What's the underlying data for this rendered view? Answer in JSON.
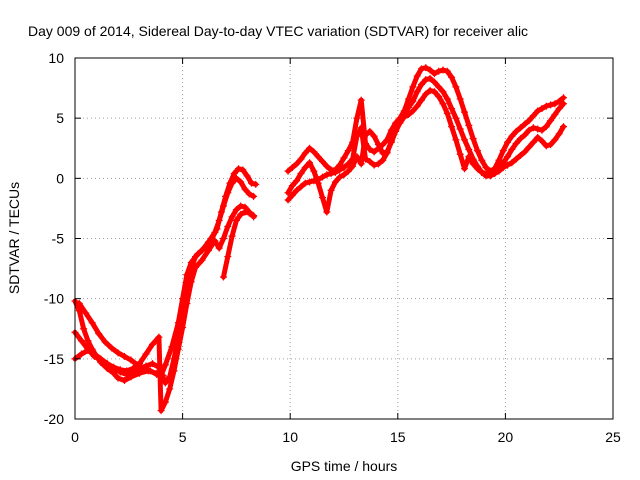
{
  "chart_data": {
    "type": "scatter",
    "title": "Day 009 of 2014, Sidereal Day-to-day VTEC variation (SDTVAR) for receiver alic",
    "xlabel": "GPS time / hours",
    "ylabel": "SDTVAR / TECUs",
    "xlim": [
      0,
      25
    ],
    "ylim": [
      -20,
      10
    ],
    "xticks": [
      "0",
      "5",
      "10",
      "15",
      "20",
      "25"
    ],
    "yticks": [
      "-20",
      "-15",
      "-10",
      "-5",
      "0",
      "5",
      "10"
    ],
    "grid": true,
    "marker": "+",
    "color": "#ff0000",
    "series": [
      {
        "values": [
          [
            0.0,
            -10.2
          ],
          [
            0.2,
            -11.0
          ],
          [
            0.4,
            -12.5
          ],
          [
            0.6,
            -13.5
          ],
          [
            0.8,
            -14.2
          ],
          [
            1.0,
            -14.8
          ],
          [
            1.2,
            -15.3
          ],
          [
            1.5,
            -15.8
          ],
          [
            1.8,
            -16.2
          ],
          [
            2.0,
            -16.6
          ],
          [
            2.3,
            -16.8
          ],
          [
            2.6,
            -16.5
          ],
          [
            3.0,
            -16.2
          ],
          [
            3.4,
            -16.0
          ],
          [
            3.8,
            -16.2
          ],
          [
            4.0,
            -16.4
          ],
          [
            4.2,
            -15.5
          ],
          [
            4.5,
            -14.0
          ],
          [
            4.8,
            -12.0
          ],
          [
            5.0,
            -10.0
          ],
          [
            5.2,
            -8.0
          ],
          [
            5.4,
            -7.0
          ],
          [
            5.7,
            -6.3
          ],
          [
            6.0,
            -5.8
          ],
          [
            6.3,
            -5.2
          ],
          [
            6.6,
            -4.2
          ],
          [
            6.8,
            -2.8
          ],
          [
            7.0,
            -1.5
          ],
          [
            7.2,
            -0.4
          ],
          [
            7.4,
            0.4
          ],
          [
            7.6,
            0.8
          ],
          [
            7.8,
            0.7
          ],
          [
            8.0,
            0.2
          ],
          [
            8.2,
            -0.4
          ],
          [
            8.4,
            -0.5
          ]
        ]
      },
      {
        "values": [
          [
            0.0,
            -12.8
          ],
          [
            0.3,
            -13.5
          ],
          [
            0.6,
            -14.2
          ],
          [
            0.9,
            -14.8
          ],
          [
            1.2,
            -15.1
          ],
          [
            1.5,
            -15.5
          ],
          [
            1.8,
            -15.8
          ],
          [
            2.1,
            -16.1
          ],
          [
            2.4,
            -16.3
          ],
          [
            2.7,
            -16.1
          ],
          [
            3.0,
            -15.8
          ],
          [
            3.3,
            -15.6
          ],
          [
            3.6,
            -15.4
          ],
          [
            3.9,
            -15.7
          ],
          [
            4.2,
            -17.0
          ],
          [
            4.4,
            -16.5
          ],
          [
            4.6,
            -15.0
          ],
          [
            4.8,
            -13.2
          ],
          [
            5.0,
            -11.5
          ],
          [
            5.2,
            -9.5
          ],
          [
            5.4,
            -7.5
          ],
          [
            5.6,
            -6.5
          ],
          [
            5.9,
            -6.0
          ],
          [
            6.2,
            -5.3
          ],
          [
            6.5,
            -4.5
          ],
          [
            6.7,
            -3.5
          ],
          [
            6.9,
            -2.3
          ],
          [
            7.1,
            -1.2
          ],
          [
            7.3,
            -0.4
          ],
          [
            7.5,
            0.0
          ],
          [
            7.7,
            -0.3
          ],
          [
            7.9,
            -0.9
          ],
          [
            8.1,
            -1.3
          ],
          [
            8.3,
            -1.5
          ]
        ]
      },
      {
        "values": [
          [
            0.0,
            -15.0
          ],
          [
            0.3,
            -14.6
          ],
          [
            0.6,
            -14.3
          ],
          [
            0.9,
            -14.6
          ],
          [
            1.2,
            -15.0
          ],
          [
            1.5,
            -15.4
          ],
          [
            1.8,
            -15.7
          ],
          [
            2.1,
            -15.9
          ],
          [
            2.4,
            -16.0
          ],
          [
            2.7,
            -15.8
          ],
          [
            3.0,
            -15.4
          ],
          [
            3.3,
            -14.6
          ],
          [
            3.6,
            -13.8
          ],
          [
            3.9,
            -13.2
          ],
          [
            4.0,
            -19.3
          ],
          [
            4.2,
            -18.6
          ],
          [
            4.4,
            -17.5
          ],
          [
            4.6,
            -16.0
          ],
          [
            4.8,
            -14.2
          ],
          [
            5.0,
            -12.4
          ],
          [
            5.2,
            -10.4
          ],
          [
            5.4,
            -8.6
          ],
          [
            5.6,
            -7.4
          ],
          [
            5.9,
            -6.8
          ],
          [
            6.2,
            -6.0
          ],
          [
            6.5,
            -5.2
          ],
          [
            6.7,
            -5.8
          ],
          [
            6.9,
            -5.0
          ],
          [
            7.1,
            -4.0
          ],
          [
            7.3,
            -3.2
          ],
          [
            7.5,
            -2.6
          ],
          [
            7.7,
            -2.3
          ],
          [
            7.9,
            -2.4
          ],
          [
            8.1,
            -2.8
          ],
          [
            8.3,
            -3.2
          ]
        ]
      },
      {
        "values": [
          [
            0.2,
            -10.4
          ],
          [
            0.5,
            -11.2
          ],
          [
            0.8,
            -12.0
          ],
          [
            1.1,
            -12.9
          ],
          [
            1.4,
            -13.6
          ],
          [
            1.7,
            -14.1
          ],
          [
            2.0,
            -14.5
          ],
          [
            2.3,
            -14.8
          ],
          [
            2.6,
            -15.1
          ],
          [
            2.9,
            -15.5
          ],
          [
            3.2,
            -15.8
          ],
          [
            3.5,
            -16.0
          ],
          [
            3.8,
            -16.3
          ],
          [
            4.1,
            -16.4
          ],
          [
            6.9,
            -8.2
          ],
          [
            7.1,
            -6.5
          ],
          [
            7.3,
            -4.8
          ],
          [
            7.5,
            -3.5
          ],
          [
            7.7,
            -3.0
          ],
          [
            7.9,
            -2.8
          ],
          [
            8.1,
            -2.9
          ],
          [
            8.3,
            -3.1
          ]
        ]
      },
      {
        "values": [
          [
            9.9,
            0.6
          ],
          [
            10.1,
            0.9
          ],
          [
            10.3,
            1.2
          ],
          [
            10.5,
            1.6
          ],
          [
            10.7,
            2.1
          ],
          [
            10.9,
            2.5
          ],
          [
            11.1,
            2.2
          ],
          [
            11.3,
            1.8
          ],
          [
            11.5,
            1.4
          ],
          [
            11.7,
            1.0
          ],
          [
            11.9,
            0.7
          ],
          [
            12.1,
            0.7
          ],
          [
            12.3,
            1.1
          ],
          [
            12.5,
            1.7
          ],
          [
            12.7,
            2.3
          ],
          [
            12.9,
            3.0
          ],
          [
            13.1,
            5.0
          ],
          [
            13.3,
            6.5
          ],
          [
            13.5,
            2.9
          ],
          [
            13.7,
            2.4
          ],
          [
            13.9,
            2.2
          ],
          [
            14.1,
            2.5
          ],
          [
            14.3,
            2.8
          ],
          [
            14.5,
            3.2
          ],
          [
            14.7,
            4.0
          ],
          [
            14.9,
            4.6
          ],
          [
            15.1,
            5.0
          ],
          [
            15.3,
            5.6
          ],
          [
            15.5,
            6.6
          ],
          [
            15.7,
            7.6
          ],
          [
            15.9,
            8.5
          ],
          [
            16.1,
            9.1
          ],
          [
            16.3,
            9.2
          ],
          [
            16.5,
            9.0
          ],
          [
            16.7,
            8.7
          ],
          [
            16.9,
            8.9
          ],
          [
            17.1,
            9.0
          ],
          [
            17.3,
            8.9
          ],
          [
            17.5,
            8.4
          ],
          [
            17.7,
            7.6
          ],
          [
            17.9,
            6.6
          ],
          [
            18.1,
            5.5
          ],
          [
            18.3,
            4.4
          ],
          [
            18.5,
            3.3
          ],
          [
            18.7,
            2.3
          ],
          [
            18.9,
            1.5
          ],
          [
            19.1,
            0.9
          ],
          [
            19.3,
            0.6
          ],
          [
            19.5,
            0.8
          ],
          [
            19.7,
            1.5
          ],
          [
            19.9,
            2.3
          ],
          [
            20.1,
            3.0
          ],
          [
            20.3,
            3.5
          ],
          [
            20.5,
            3.9
          ],
          [
            20.7,
            4.2
          ],
          [
            20.9,
            4.5
          ],
          [
            21.1,
            4.8
          ],
          [
            21.3,
            5.2
          ],
          [
            21.5,
            5.6
          ],
          [
            21.7,
            5.8
          ],
          [
            21.9,
            6.0
          ],
          [
            22.1,
            6.1
          ],
          [
            22.3,
            6.2
          ],
          [
            22.5,
            6.4
          ],
          [
            22.7,
            6.7
          ]
        ]
      },
      {
        "values": [
          [
            9.9,
            -1.8
          ],
          [
            10.1,
            -1.4
          ],
          [
            10.3,
            -1.0
          ],
          [
            10.5,
            -0.7
          ],
          [
            10.7,
            -0.4
          ],
          [
            10.9,
            -0.3
          ],
          [
            11.1,
            -0.2
          ],
          [
            11.3,
            -0.1
          ],
          [
            11.5,
            0.1
          ],
          [
            11.7,
            0.3
          ],
          [
            11.9,
            0.4
          ],
          [
            12.1,
            0.5
          ],
          [
            12.3,
            0.7
          ],
          [
            12.5,
            0.9
          ],
          [
            12.7,
            1.2
          ],
          [
            12.9,
            1.6
          ],
          [
            13.1,
            3.5
          ],
          [
            13.3,
            4.2
          ],
          [
            13.5,
            1.6
          ],
          [
            13.7,
            1.4
          ],
          [
            13.9,
            1.1
          ],
          [
            14.1,
            1.2
          ],
          [
            14.3,
            1.5
          ],
          [
            14.5,
            2.1
          ],
          [
            14.7,
            3.1
          ],
          [
            14.9,
            4.0
          ],
          [
            15.1,
            4.8
          ],
          [
            15.3,
            5.4
          ],
          [
            15.5,
            5.9
          ],
          [
            15.7,
            6.4
          ],
          [
            15.9,
            7.2
          ],
          [
            16.1,
            7.8
          ],
          [
            16.3,
            8.2
          ],
          [
            16.5,
            8.3
          ],
          [
            16.7,
            8.0
          ],
          [
            16.9,
            7.6
          ],
          [
            17.1,
            7.2
          ],
          [
            17.3,
            6.6
          ],
          [
            17.5,
            5.8
          ],
          [
            17.7,
            5.0
          ],
          [
            17.9,
            4.1
          ],
          [
            18.1,
            3.2
          ],
          [
            18.3,
            2.4
          ],
          [
            18.5,
            1.6
          ],
          [
            18.7,
            1.0
          ],
          [
            18.9,
            0.5
          ],
          [
            19.1,
            0.2
          ],
          [
            19.3,
            0.2
          ],
          [
            19.5,
            0.4
          ],
          [
            19.7,
            0.8
          ],
          [
            19.9,
            1.3
          ],
          [
            20.1,
            1.8
          ],
          [
            20.3,
            2.4
          ],
          [
            20.5,
            2.9
          ],
          [
            20.7,
            3.3
          ],
          [
            20.9,
            3.6
          ],
          [
            21.1,
            4.0
          ],
          [
            21.3,
            4.2
          ],
          [
            21.5,
            4.1
          ],
          [
            21.7,
            4.0
          ],
          [
            21.9,
            4.3
          ],
          [
            22.1,
            4.8
          ],
          [
            22.3,
            5.3
          ],
          [
            22.5,
            5.8
          ],
          [
            22.7,
            6.2
          ]
        ]
      },
      {
        "values": [
          [
            9.9,
            -1.2
          ],
          [
            10.1,
            -0.6
          ],
          [
            10.3,
            -0.2
          ],
          [
            10.5,
            0.4
          ],
          [
            10.7,
            0.9
          ],
          [
            10.9,
            1.3
          ],
          [
            11.1,
            0.6
          ],
          [
            11.3,
            -0.4
          ],
          [
            11.5,
            -1.6
          ],
          [
            11.7,
            -2.8
          ],
          [
            11.9,
            -1.0
          ],
          [
            12.1,
            -0.3
          ],
          [
            12.3,
            0.1
          ],
          [
            12.5,
            0.3
          ],
          [
            12.7,
            0.6
          ],
          [
            12.9,
            1.0
          ],
          [
            13.1,
            1.8
          ],
          [
            13.3,
            1.2
          ],
          [
            13.5,
            3.6
          ],
          [
            13.7,
            3.9
          ],
          [
            13.9,
            3.5
          ],
          [
            14.1,
            2.8
          ],
          [
            14.3,
            2.1
          ],
          [
            14.5,
            2.2
          ],
          [
            14.7,
            3.0
          ],
          [
            14.9,
            3.9
          ],
          [
            15.1,
            4.6
          ],
          [
            15.3,
            5.1
          ],
          [
            15.5,
            5.3
          ],
          [
            15.7,
            5.6
          ],
          [
            15.9,
            6.0
          ],
          [
            16.1,
            6.5
          ],
          [
            16.3,
            7.0
          ],
          [
            16.5,
            7.3
          ],
          [
            16.7,
            7.2
          ],
          [
            16.9,
            6.8
          ],
          [
            17.1,
            6.2
          ],
          [
            17.3,
            5.4
          ],
          [
            17.5,
            4.3
          ],
          [
            17.7,
            3.2
          ],
          [
            17.9,
            2.0
          ],
          [
            18.1,
            0.8
          ],
          [
            18.3,
            1.8
          ],
          [
            18.5,
            1.2
          ],
          [
            18.7,
            0.8
          ],
          [
            18.9,
            0.5
          ],
          [
            19.1,
            0.4
          ],
          [
            19.3,
            0.3
          ],
          [
            19.5,
            0.4
          ],
          [
            19.7,
            0.6
          ],
          [
            19.9,
            0.9
          ],
          [
            20.1,
            1.1
          ],
          [
            20.3,
            1.3
          ],
          [
            20.5,
            1.6
          ],
          [
            20.7,
            1.9
          ],
          [
            20.9,
            2.2
          ],
          [
            21.1,
            2.6
          ],
          [
            21.3,
            3.0
          ],
          [
            21.5,
            3.4
          ],
          [
            21.7,
            3.1
          ],
          [
            21.9,
            2.7
          ],
          [
            22.1,
            2.8
          ],
          [
            22.3,
            3.2
          ],
          [
            22.5,
            3.7
          ],
          [
            22.7,
            4.3
          ]
        ]
      }
    ]
  }
}
